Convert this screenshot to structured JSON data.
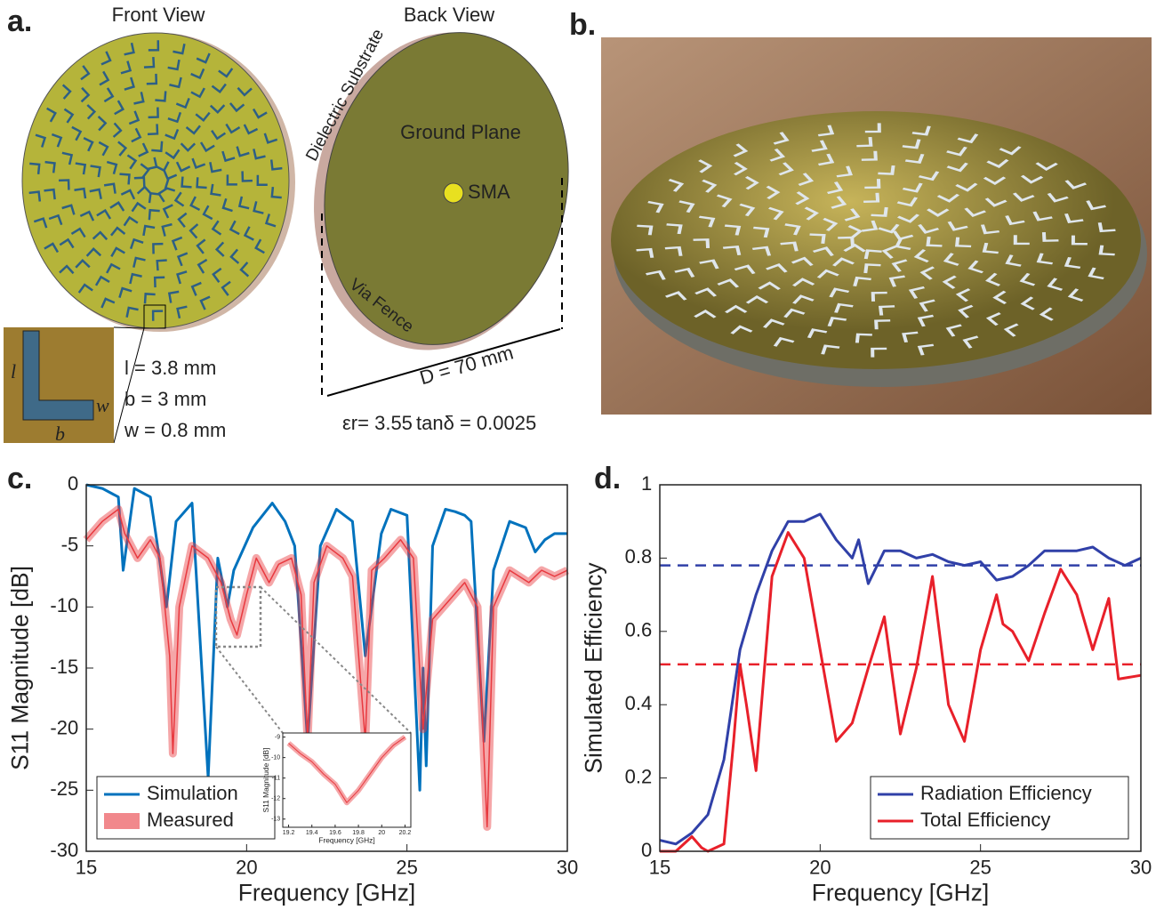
{
  "panel_a": {
    "label": "a.",
    "front_title": "Front View",
    "back_title": "Back View",
    "substrate": "Dielectric Substrate",
    "ground": "Ground Plane",
    "sma": "SMA",
    "via": "Via Fence",
    "diameter": "D = 70 mm",
    "l_dim": "l = 3.8 mm",
    "b_dim": "b = 3 mm",
    "w_dim": "w = 0.8 mm",
    "eps": "εr= 3.55",
    "tan": "tanδ = 0.0025",
    "inset_l": "l",
    "inset_b": "b",
    "inset_w": "w"
  },
  "panel_b": {
    "label": "b."
  },
  "panel_c": {
    "label": "c."
  },
  "panel_d": {
    "label": "d."
  },
  "chart_data": [
    {
      "type": "line",
      "xlabel": "Frequency [GHz]",
      "ylabel": "S11 Magnitude [dB]",
      "xlim": [
        15,
        30
      ],
      "ylim": [
        -30,
        0
      ],
      "xticks": [
        15,
        20,
        25,
        30
      ],
      "yticks": [
        -30,
        -25,
        -20,
        -15,
        -10,
        -5,
        0
      ],
      "legend": "lower left",
      "series": [
        {
          "name": "Simulation",
          "color": "#0072bd",
          "x": [
            15,
            15.5,
            16,
            16.15,
            16.5,
            17,
            17.5,
            17.8,
            18.3,
            18.8,
            19.1,
            19.4,
            19.6,
            20.2,
            20.8,
            21.2,
            21.5,
            21.9,
            22.3,
            22.8,
            23.3,
            23.7,
            24.2,
            24.5,
            25,
            25.4,
            25.5,
            25.6,
            25.8,
            26.2,
            26.5,
            26.8,
            27,
            27.4,
            27.7,
            28.2,
            28.7,
            29,
            29.3,
            29.6,
            30
          ],
          "values": [
            0,
            -0.3,
            -1,
            -7,
            -0.3,
            -1,
            -10,
            -3,
            -1.5,
            -24,
            -6,
            -10,
            -7,
            -3.5,
            -1.5,
            -3,
            -5,
            -21,
            -5,
            -2,
            -3,
            -14,
            -4,
            -2,
            -2.5,
            -25,
            -15,
            -23,
            -5,
            -2,
            -2.2,
            -2.5,
            -3,
            -21,
            -7,
            -3,
            -3.5,
            -5.5,
            -4.5,
            -4,
            -4
          ]
        },
        {
          "name": "Measured",
          "color": "#e8393f",
          "band": true,
          "x": [
            15,
            15.5,
            16,
            16.2,
            16.6,
            17,
            17.3,
            17.6,
            17.7,
            17.9,
            18.3,
            18.8,
            19.2,
            19.5,
            19.7,
            20,
            20.3,
            20.5,
            20.7,
            21,
            21.4,
            21.7,
            21.9,
            22.1,
            22.5,
            23,
            23.3,
            23.7,
            23.9,
            24.3,
            24.8,
            25.2,
            25.5,
            25.8,
            26.3,
            26.8,
            27.2,
            27.5,
            27.7,
            28.2,
            28.8,
            29.2,
            29.6,
            30
          ],
          "values": [
            -4.5,
            -3,
            -2,
            -4,
            -6,
            -4.5,
            -6,
            -14,
            -22,
            -10,
            -5,
            -6,
            -8,
            -11,
            -12.3,
            -9,
            -6,
            -7,
            -8,
            -6.5,
            -6,
            -9,
            -21,
            -8,
            -5,
            -6,
            -7.5,
            -21,
            -7,
            -6,
            -4.5,
            -6,
            -20,
            -11,
            -9.5,
            -8,
            -10,
            -28,
            -10,
            -7,
            -8,
            -7,
            -7.5,
            -7
          ]
        }
      ]
    },
    {
      "type": "line",
      "xlabel": "Frequency [GHz]",
      "ylabel": "S11 Magnitude [dB]",
      "xlim": [
        19.15,
        20.25
      ],
      "ylim": [
        -13.4,
        -8.8
      ],
      "xticks": [
        19.2,
        19.4,
        19.6,
        19.8,
        20,
        20.2
      ],
      "yticks": [
        -13,
        -12,
        -11,
        -10,
        -9
      ],
      "series": [
        {
          "color": "#e8393f",
          "band": true,
          "x": [
            19.2,
            19.3,
            19.4,
            19.5,
            19.6,
            19.7,
            19.8,
            19.9,
            20,
            20.1,
            20.2
          ],
          "values": [
            -9.3,
            -9.8,
            -10.2,
            -10.8,
            -11.3,
            -12.2,
            -11.6,
            -10.8,
            -10,
            -9.4,
            -9
          ]
        }
      ]
    },
    {
      "type": "line",
      "xlabel": "Frequency [GHz]",
      "ylabel": "Simulated Efficiency",
      "xlim": [
        15,
        30
      ],
      "ylim": [
        0,
        1
      ],
      "xticks": [
        15,
        20,
        25,
        30
      ],
      "yticks": [
        0,
        0.2,
        0.4,
        0.6,
        0.8,
        1
      ],
      "legend": "lower right",
      "hlines": [
        {
          "value": 0.78,
          "color": "#3040a8",
          "linestyle": "dashed"
        },
        {
          "value": 0.51,
          "color": "#e8202a",
          "linestyle": "dashed"
        }
      ],
      "series": [
        {
          "name": "Radiation Efficiency",
          "color": "#3040a8",
          "x": [
            15,
            15.5,
            16,
            16.5,
            17,
            17.5,
            18,
            18.5,
            19,
            19.5,
            20,
            20.5,
            21,
            21.2,
            21.5,
            22,
            22.5,
            23,
            23.5,
            24,
            24.5,
            25,
            25.5,
            26,
            26.5,
            27,
            27.5,
            28,
            28.5,
            29,
            29.5,
            30
          ],
          "values": [
            0.03,
            0.02,
            0.05,
            0.1,
            0.25,
            0.55,
            0.7,
            0.82,
            0.9,
            0.9,
            0.92,
            0.85,
            0.8,
            0.85,
            0.73,
            0.82,
            0.82,
            0.8,
            0.81,
            0.79,
            0.78,
            0.79,
            0.74,
            0.75,
            0.78,
            0.82,
            0.82,
            0.82,
            0.83,
            0.8,
            0.78,
            0.8
          ]
        },
        {
          "name": "Total Efficiency",
          "color": "#e8202a",
          "x": [
            15,
            15.5,
            16,
            16.3,
            16.5,
            17,
            17.3,
            17.5,
            17.7,
            18,
            18.5,
            19,
            19.5,
            20,
            20.5,
            21,
            21.5,
            22,
            22.5,
            23,
            23.5,
            24,
            24.5,
            25,
            25.5,
            25.7,
            26,
            26.5,
            27,
            27.5,
            28,
            28.5,
            29,
            29.3,
            30
          ],
          "values": [
            0,
            0,
            0.04,
            0.01,
            0,
            0.02,
            0.3,
            0.51,
            0.4,
            0.22,
            0.75,
            0.87,
            0.8,
            0.55,
            0.3,
            0.35,
            0.5,
            0.64,
            0.32,
            0.5,
            0.75,
            0.4,
            0.3,
            0.55,
            0.7,
            0.62,
            0.6,
            0.52,
            0.65,
            0.77,
            0.7,
            0.55,
            0.69,
            0.47,
            0.48
          ]
        }
      ]
    }
  ]
}
